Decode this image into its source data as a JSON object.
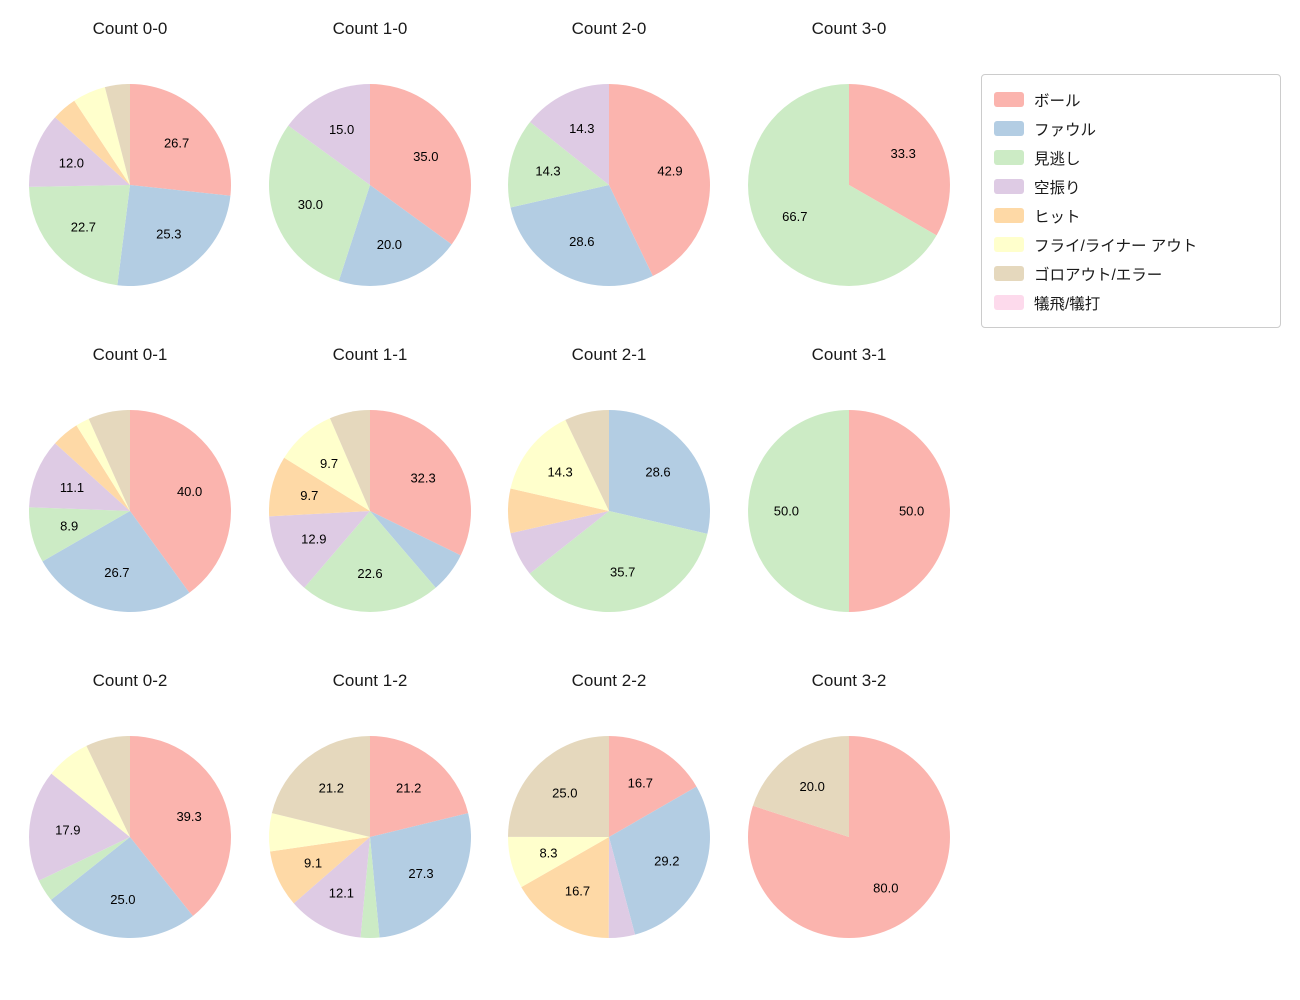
{
  "page": {
    "background": "#ffffff",
    "text_color": "#1a1a1a"
  },
  "legend": {
    "items": [
      {
        "label": "ボール",
        "color": "#fbb4ae"
      },
      {
        "label": "ファウル",
        "color": "#b3cde3"
      },
      {
        "label": "見逃し",
        "color": "#ccebc5"
      },
      {
        "label": "空振り",
        "color": "#decbe4"
      },
      {
        "label": "ヒット",
        "color": "#fed9a6"
      },
      {
        "label": "フライ/ライナー アウト",
        "color": "#ffffcc"
      },
      {
        "label": "ゴロアウト/エラー",
        "color": "#e5d8bd"
      },
      {
        "label": "犠飛/犠打",
        "color": "#fddaec"
      }
    ]
  },
  "chart_data": {
    "type": "pie",
    "grid": {
      "rows": 3,
      "cols": 4
    },
    "start_angle_deg": 90,
    "direction": "clockwise",
    "label_threshold_pct": 8,
    "pct_label_distance": 0.62,
    "charts": [
      {
        "title": "Count 0-0",
        "slices": [
          {
            "category": "ボール",
            "value": 26.7
          },
          {
            "category": "ファウル",
            "value": 25.3
          },
          {
            "category": "見逃し",
            "value": 22.7
          },
          {
            "category": "空振り",
            "value": 12.0
          },
          {
            "category": "ヒット",
            "value": 4.0
          },
          {
            "category": "フライ/ライナー アウト",
            "value": 5.3
          },
          {
            "category": "ゴロアウト/エラー",
            "value": 4.0
          }
        ]
      },
      {
        "title": "Count 1-0",
        "slices": [
          {
            "category": "ボール",
            "value": 35.0
          },
          {
            "category": "ファウル",
            "value": 20.0
          },
          {
            "category": "見逃し",
            "value": 30.0
          },
          {
            "category": "空振り",
            "value": 15.0
          }
        ]
      },
      {
        "title": "Count 2-0",
        "slices": [
          {
            "category": "ボール",
            "value": 42.9
          },
          {
            "category": "ファウル",
            "value": 28.6
          },
          {
            "category": "見逃し",
            "value": 14.3
          },
          {
            "category": "空振り",
            "value": 14.3
          }
        ]
      },
      {
        "title": "Count 3-0",
        "slices": [
          {
            "category": "ボール",
            "value": 33.3
          },
          {
            "category": "見逃し",
            "value": 66.7
          }
        ]
      },
      {
        "title": "Count 0-1",
        "slices": [
          {
            "category": "ボール",
            "value": 40.0
          },
          {
            "category": "ファウル",
            "value": 26.7
          },
          {
            "category": "見逃し",
            "value": 8.9
          },
          {
            "category": "空振り",
            "value": 11.1
          },
          {
            "category": "ヒット",
            "value": 4.4
          },
          {
            "category": "フライ/ライナー アウト",
            "value": 2.2
          },
          {
            "category": "ゴロアウト/エラー",
            "value": 6.7
          }
        ]
      },
      {
        "title": "Count 1-1",
        "slices": [
          {
            "category": "ボール",
            "value": 32.3
          },
          {
            "category": "ファウル",
            "value": 6.5
          },
          {
            "category": "見逃し",
            "value": 22.6
          },
          {
            "category": "空振り",
            "value": 12.9
          },
          {
            "category": "ヒット",
            "value": 9.7
          },
          {
            "category": "フライ/ライナー アウト",
            "value": 9.7
          },
          {
            "category": "ゴロアウト/エラー",
            "value": 6.5
          }
        ]
      },
      {
        "title": "Count 2-1",
        "slices": [
          {
            "category": "ファウル",
            "value": 28.6
          },
          {
            "category": "見逃し",
            "value": 35.7
          },
          {
            "category": "空振り",
            "value": 7.1
          },
          {
            "category": "ヒット",
            "value": 7.1
          },
          {
            "category": "フライ/ライナー アウト",
            "value": 14.3
          },
          {
            "category": "ゴロアウト/エラー",
            "value": 7.1
          }
        ]
      },
      {
        "title": "Count 3-1",
        "slices": [
          {
            "category": "ボール",
            "value": 50.0
          },
          {
            "category": "見逃し",
            "value": 50.0
          }
        ]
      },
      {
        "title": "Count 0-2",
        "slices": [
          {
            "category": "ボール",
            "value": 39.3
          },
          {
            "category": "ファウル",
            "value": 25.0
          },
          {
            "category": "見逃し",
            "value": 3.6
          },
          {
            "category": "空振り",
            "value": 17.9
          },
          {
            "category": "フライ/ライナー アウト",
            "value": 7.1
          },
          {
            "category": "ゴロアウト/エラー",
            "value": 7.1
          }
        ]
      },
      {
        "title": "Count 1-2",
        "slices": [
          {
            "category": "ボール",
            "value": 21.2
          },
          {
            "category": "ファウル",
            "value": 27.3
          },
          {
            "category": "見逃し",
            "value": 3.0
          },
          {
            "category": "空振り",
            "value": 12.1
          },
          {
            "category": "ヒット",
            "value": 9.1
          },
          {
            "category": "フライ/ライナー アウト",
            "value": 6.1
          },
          {
            "category": "ゴロアウト/エラー",
            "value": 21.2
          }
        ]
      },
      {
        "title": "Count 2-2",
        "slices": [
          {
            "category": "ボール",
            "value": 16.7
          },
          {
            "category": "ファウル",
            "value": 29.2
          },
          {
            "category": "空振り",
            "value": 4.2
          },
          {
            "category": "ヒット",
            "value": 16.7
          },
          {
            "category": "フライ/ライナー アウト",
            "value": 8.3
          },
          {
            "category": "ゴロアウト/エラー",
            "value": 25.0
          }
        ]
      },
      {
        "title": "Count 3-2",
        "slices": [
          {
            "category": "ボール",
            "value": 80.0
          },
          {
            "category": "ゴロアウト/エラー",
            "value": 20.0
          }
        ]
      }
    ]
  }
}
